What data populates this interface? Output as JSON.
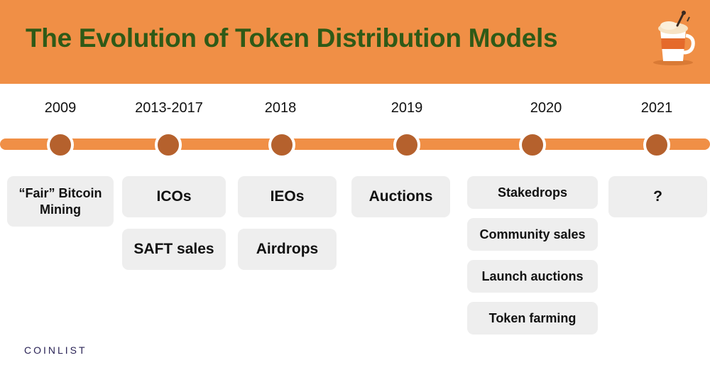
{
  "header": {
    "title": "The Evolution of Token Distribution Models",
    "mascot_icon": "coffee-mug-icon",
    "background_color": "#f08f46",
    "title_color": "#2f5a17"
  },
  "timeline": {
    "track_color": "#f08f46",
    "node_color": "#b5612d",
    "years": [
      "2009",
      "2013-2017",
      "2018",
      "2019",
      "2020",
      "2021"
    ],
    "columns": [
      {
        "year": "2009",
        "cards": [
          "“Fair” Bitcoin Mining"
        ]
      },
      {
        "year": "2013-2017",
        "cards": [
          "ICOs",
          "SAFT sales"
        ]
      },
      {
        "year": "2018",
        "cards": [
          "IEOs",
          "Airdrops"
        ]
      },
      {
        "year": "2019",
        "cards": [
          "Auctions"
        ]
      },
      {
        "year": "2020",
        "cards": [
          "Stakedrops",
          "Community sales",
          "Launch auctions",
          "Token farming"
        ]
      },
      {
        "year": "2021",
        "cards": [
          "?"
        ]
      }
    ]
  },
  "footer": {
    "logo_text": "COINLIST"
  }
}
